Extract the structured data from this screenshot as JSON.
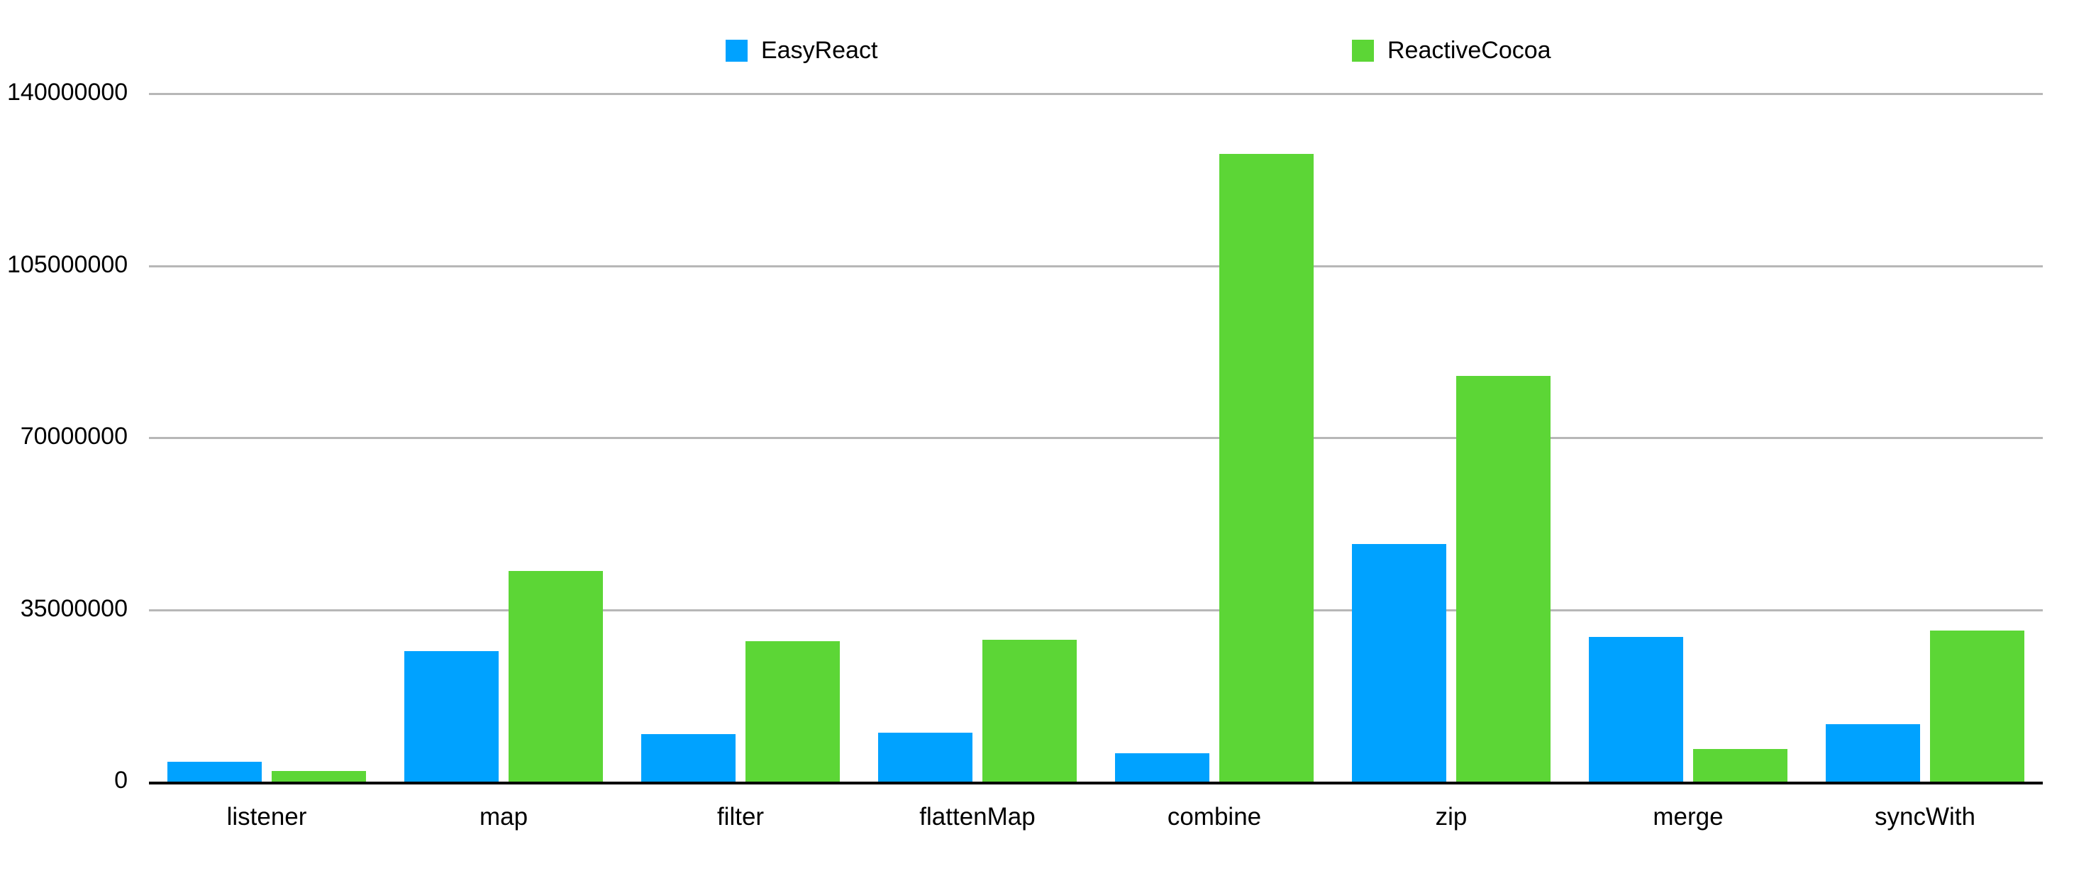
{
  "legend": {
    "items": [
      {
        "label": "EasyReact",
        "color": "#00A2FF"
      },
      {
        "label": "ReactiveCocoa",
        "color": "#5CD636"
      }
    ]
  },
  "chart_data": {
    "type": "bar",
    "title": "",
    "xlabel": "",
    "ylabel": "",
    "categories": [
      "listener",
      "map",
      "filter",
      "flattenMap",
      "combine",
      "zip",
      "merge",
      "syncWith"
    ],
    "series": [
      {
        "name": "EasyReact",
        "color": "#00A2FF",
        "values": [
          4100000,
          26500000,
          9700000,
          9900000,
          5800000,
          48400000,
          29500000,
          11700000
        ]
      },
      {
        "name": "ReactiveCocoa",
        "color": "#5CD636",
        "values": [
          2200000,
          42800000,
          28600000,
          28900000,
          127800000,
          82600000,
          6600000,
          30700000
        ]
      }
    ],
    "ylim": [
      0,
      140000000
    ],
    "yticks": [
      0,
      35000000,
      70000000,
      105000000,
      140000000
    ],
    "ytick_labels": [
      "0",
      "35000000",
      "70000000",
      "105000000",
      "140000000"
    ],
    "grid": true,
    "gridline_color": "#b7b7b7",
    "axis_line_color": "#000000",
    "legend_position": "top"
  }
}
